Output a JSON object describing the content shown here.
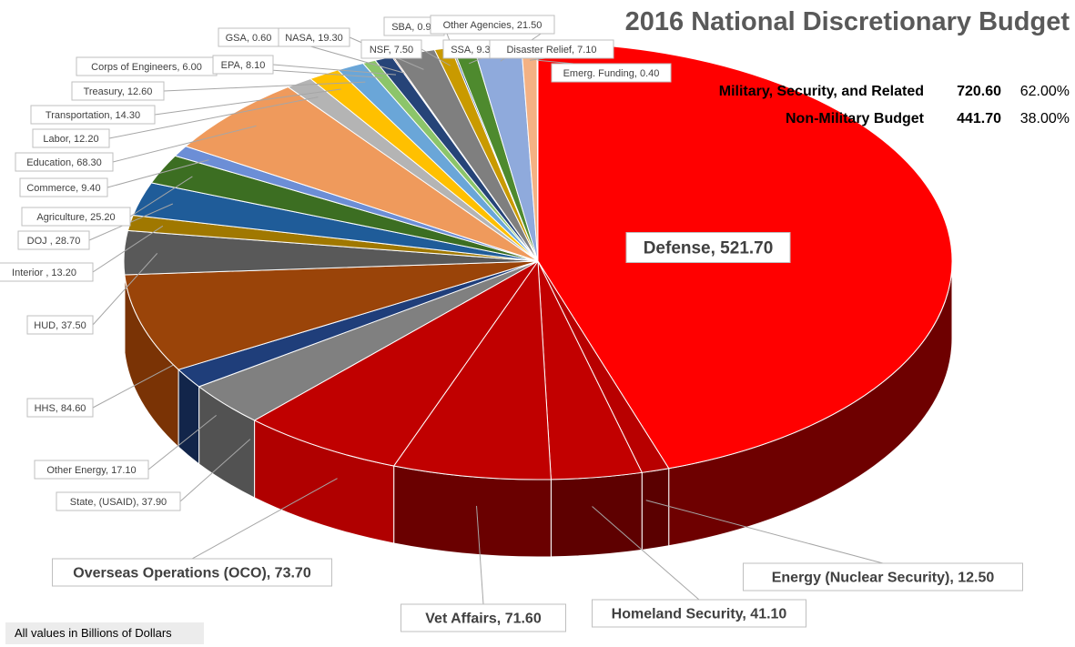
{
  "chart_data": {
    "type": "pie",
    "title": "2016 National Discretionary Budget",
    "note": "All values in Billions of Dollars",
    "summary": [
      {
        "label": "Military, Security, and Related",
        "value": "720.60",
        "percent": "62.00%"
      },
      {
        "label": "Non-Military Budget",
        "value": "441.70",
        "percent": "38.00%"
      }
    ],
    "slices": [
      {
        "name": "Defense",
        "value": 521.7,
        "label": "Defense, 521.70",
        "color": "#ff0000",
        "side": "#6e0000"
      },
      {
        "name": "Energy (Nuclear Security)",
        "value": 12.5,
        "label": "Energy (Nuclear Security), 12.50",
        "color": "#b80000",
        "side": "#5a0000"
      },
      {
        "name": "Homeland Security",
        "value": 41.1,
        "label": "Homeland Security, 41.10",
        "color": "#c20000",
        "side": "#5e0000"
      },
      {
        "name": "Vet Affairs",
        "value": 71.6,
        "label": "Vet Affairs, 71.60",
        "color": "#c00000",
        "side": "#6a0000"
      },
      {
        "name": "Overseas Operations (OCO)",
        "value": 73.7,
        "label": "Overseas Operations (OCO), 73.70",
        "color": "#c00000",
        "side": "#b00000"
      },
      {
        "name": "State, (USAID)",
        "value": 37.9,
        "label": "State, (USAID), 37.90",
        "color": "#808080",
        "side": "#525252"
      },
      {
        "name": "Other Energy",
        "value": 17.1,
        "label": "Other Energy, 17.10",
        "color": "#1f3e7a",
        "side": "#12254a"
      },
      {
        "name": "HHS",
        "value": 84.6,
        "label": "HHS, 84.60",
        "color": "#9a4409",
        "side": "#7a3305"
      },
      {
        "name": "HUD",
        "value": 37.5,
        "label": "HUD, 37.50",
        "color": "#595959",
        "side": "#3a3a3a"
      },
      {
        "name": "Interior",
        "value": 13.2,
        "label": "Interior , 13.20",
        "color": "#a07800",
        "side": "#6f5300"
      },
      {
        "name": "DOJ",
        "value": 28.7,
        "label": "DOJ , 28.70",
        "color": "#1f5c99",
        "side": "#123c66"
      },
      {
        "name": "Agriculture",
        "value": 25.2,
        "label": "Agriculture, 25.20",
        "color": "#3c6e22",
        "side": "#284a17"
      },
      {
        "name": "Commerce",
        "value": 9.4,
        "label": "Commerce, 9.40",
        "color": "#6c8ed6",
        "side": "#4a6499"
      },
      {
        "name": "Education",
        "value": 68.3,
        "label": "Education, 68.30",
        "color": "#ef9a5c",
        "side": "#b06a36"
      },
      {
        "name": "Labor",
        "value": 12.2,
        "label": "Labor, 12.20",
        "color": "#b4b4b4",
        "side": "#808080"
      },
      {
        "name": "Transportation",
        "value": 14.3,
        "label": "Transportation, 14.30",
        "color": "#ffc000",
        "side": "#b08400"
      },
      {
        "name": "Treasury",
        "value": 12.6,
        "label": "Treasury, 12.60",
        "color": "#6aa6d8",
        "side": "#4676a0"
      },
      {
        "name": "Corps of Engineers",
        "value": 6.0,
        "label": "Corps of Engineers, 6.00",
        "color": "#8cc56a",
        "side": "#5f8c45"
      },
      {
        "name": "EPA",
        "value": 8.1,
        "label": "EPA, 8.10",
        "color": "#264478",
        "side": "#172a4a"
      },
      {
        "name": "GSA",
        "value": 0.6,
        "label": "GSA, 0.60",
        "color": "#993300",
        "side": "#662200"
      },
      {
        "name": "NASA",
        "value": 19.3,
        "label": "NASA, 19.30",
        "color": "#7f7f7f",
        "side": "#555555"
      },
      {
        "name": "NSF",
        "value": 7.5,
        "label": "NSF, 7.50",
        "color": "#c99a00",
        "side": "#8c6b00"
      },
      {
        "name": "SBA",
        "value": 0.9,
        "label": "SBA, 0.90",
        "color": "#2f5597",
        "side": "#1f3864"
      },
      {
        "name": "SSA",
        "value": 9.3,
        "label": "SSA, 9.30",
        "color": "#4e8a2e",
        "side": "#34601e"
      },
      {
        "name": "Other Agencies",
        "value": 21.5,
        "label": "Other Agencies, 21.50",
        "color": "#8faadc",
        "side": "#6177a0"
      },
      {
        "name": "Disaster Relief",
        "value": 7.1,
        "label": "Disaster Relief, 7.10",
        "color": "#f4b183",
        "side": "#b07a58"
      },
      {
        "name": "Emerg. Funding",
        "value": 0.4,
        "label": "Emerg. Funding, 0.40",
        "color": "#d0d0d0",
        "side": "#909090"
      }
    ]
  }
}
